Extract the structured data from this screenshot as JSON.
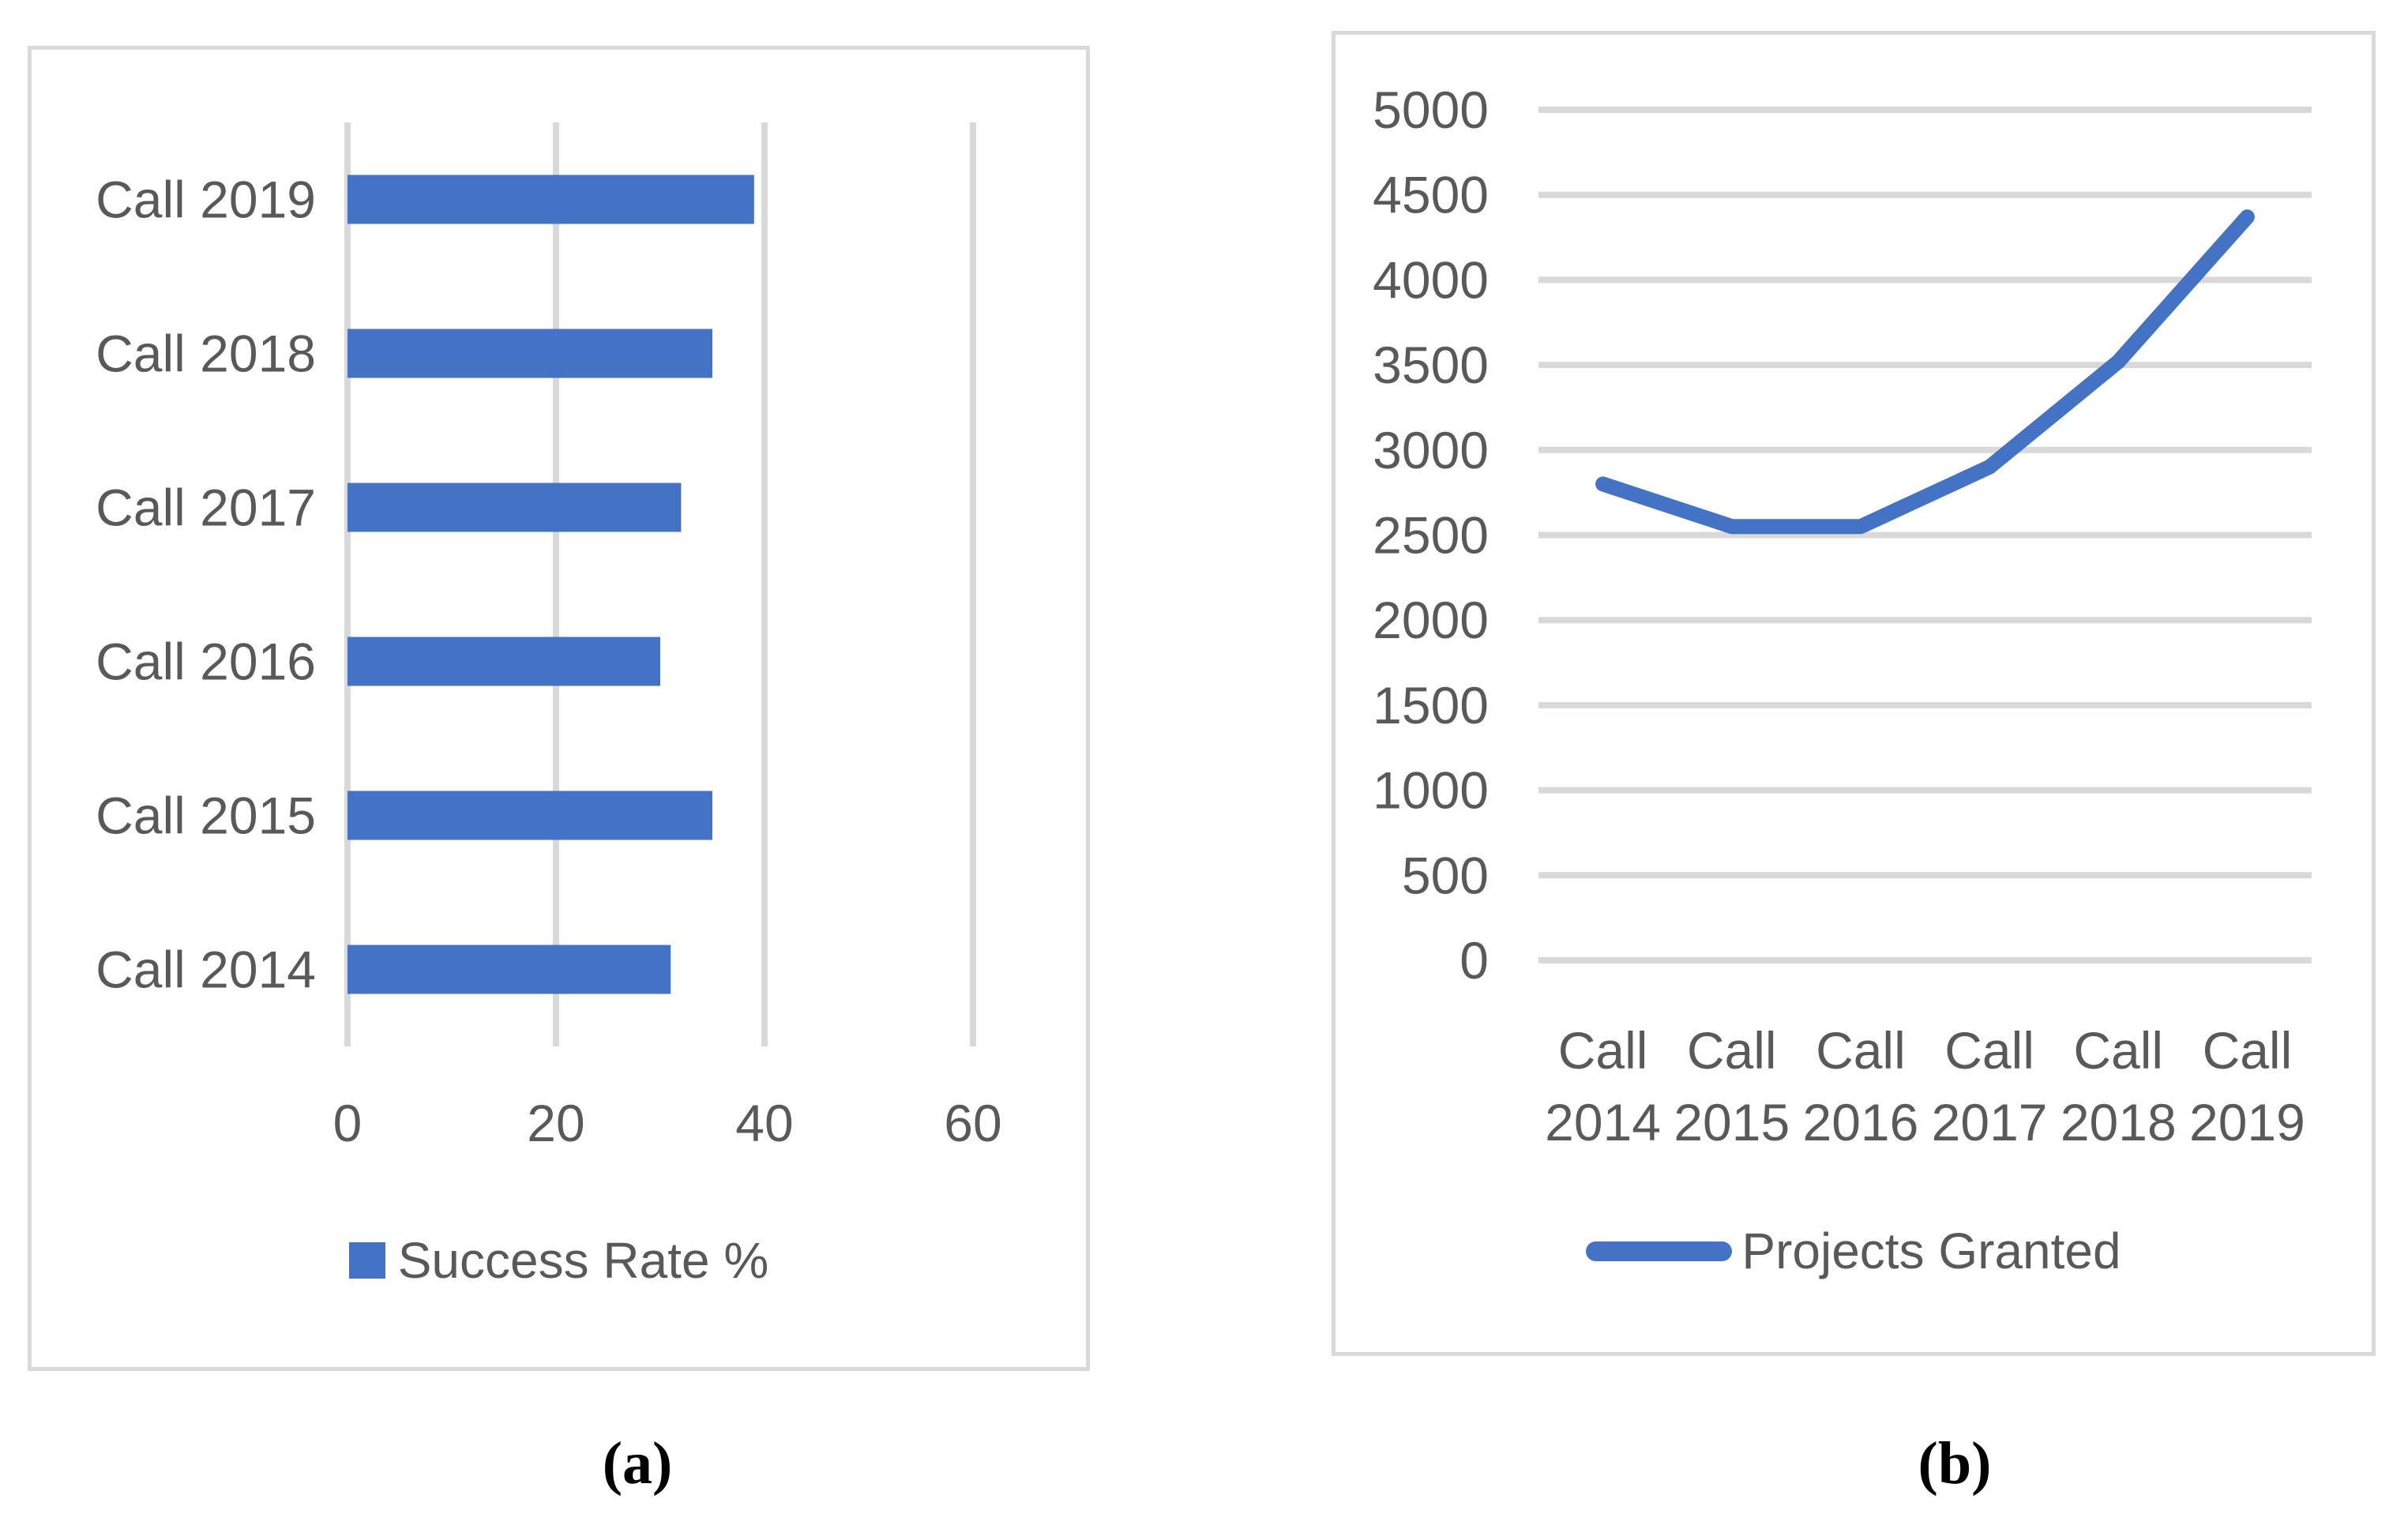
{
  "figure": {
    "description": "Two-panel figure with horizontal bar chart (a) and line chart (b)",
    "captions": {
      "a": "(a)",
      "b": "(b)"
    }
  },
  "colors": {
    "series_blue": "#4472C4",
    "gridline": "#D9D9D9",
    "axis_text": "#595959",
    "panel_border": "#D9D9D9",
    "background": "#FFFFFF",
    "caption_text": "#000000"
  },
  "chart_data": [
    {
      "panel": "a",
      "type": "bar",
      "orientation": "horizontal",
      "row_order": "top-to-bottom",
      "categories": [
        "Call 2019",
        "Call 2018",
        "Call 2017",
        "Call 2016",
        "Call 2015",
        "Call 2014"
      ],
      "values": [
        39,
        35,
        32,
        30,
        35,
        31
      ],
      "legend": "Success Rate %",
      "title": "",
      "xlabel": "",
      "ylabel": "",
      "xlim": [
        0,
        70
      ],
      "xticks": [
        0,
        20,
        40,
        60
      ],
      "grid": true,
      "legend_position": "bottom"
    },
    {
      "panel": "b",
      "type": "line",
      "categories": [
        "Call 2014",
        "Call 2015",
        "Call 2016",
        "Call 2017",
        "Call 2018",
        "Call 2019"
      ],
      "values": [
        2800,
        2550,
        2550,
        2900,
        3520,
        4370
      ],
      "legend": "Projects Granted",
      "title": "",
      "xlabel": "",
      "ylabel": "",
      "ylim": [
        0,
        5000
      ],
      "yticks": [
        5000,
        4500,
        4000,
        3500,
        3000,
        2500,
        2000,
        1500,
        1000,
        500,
        0
      ],
      "grid": true,
      "legend_position": "bottom"
    }
  ]
}
